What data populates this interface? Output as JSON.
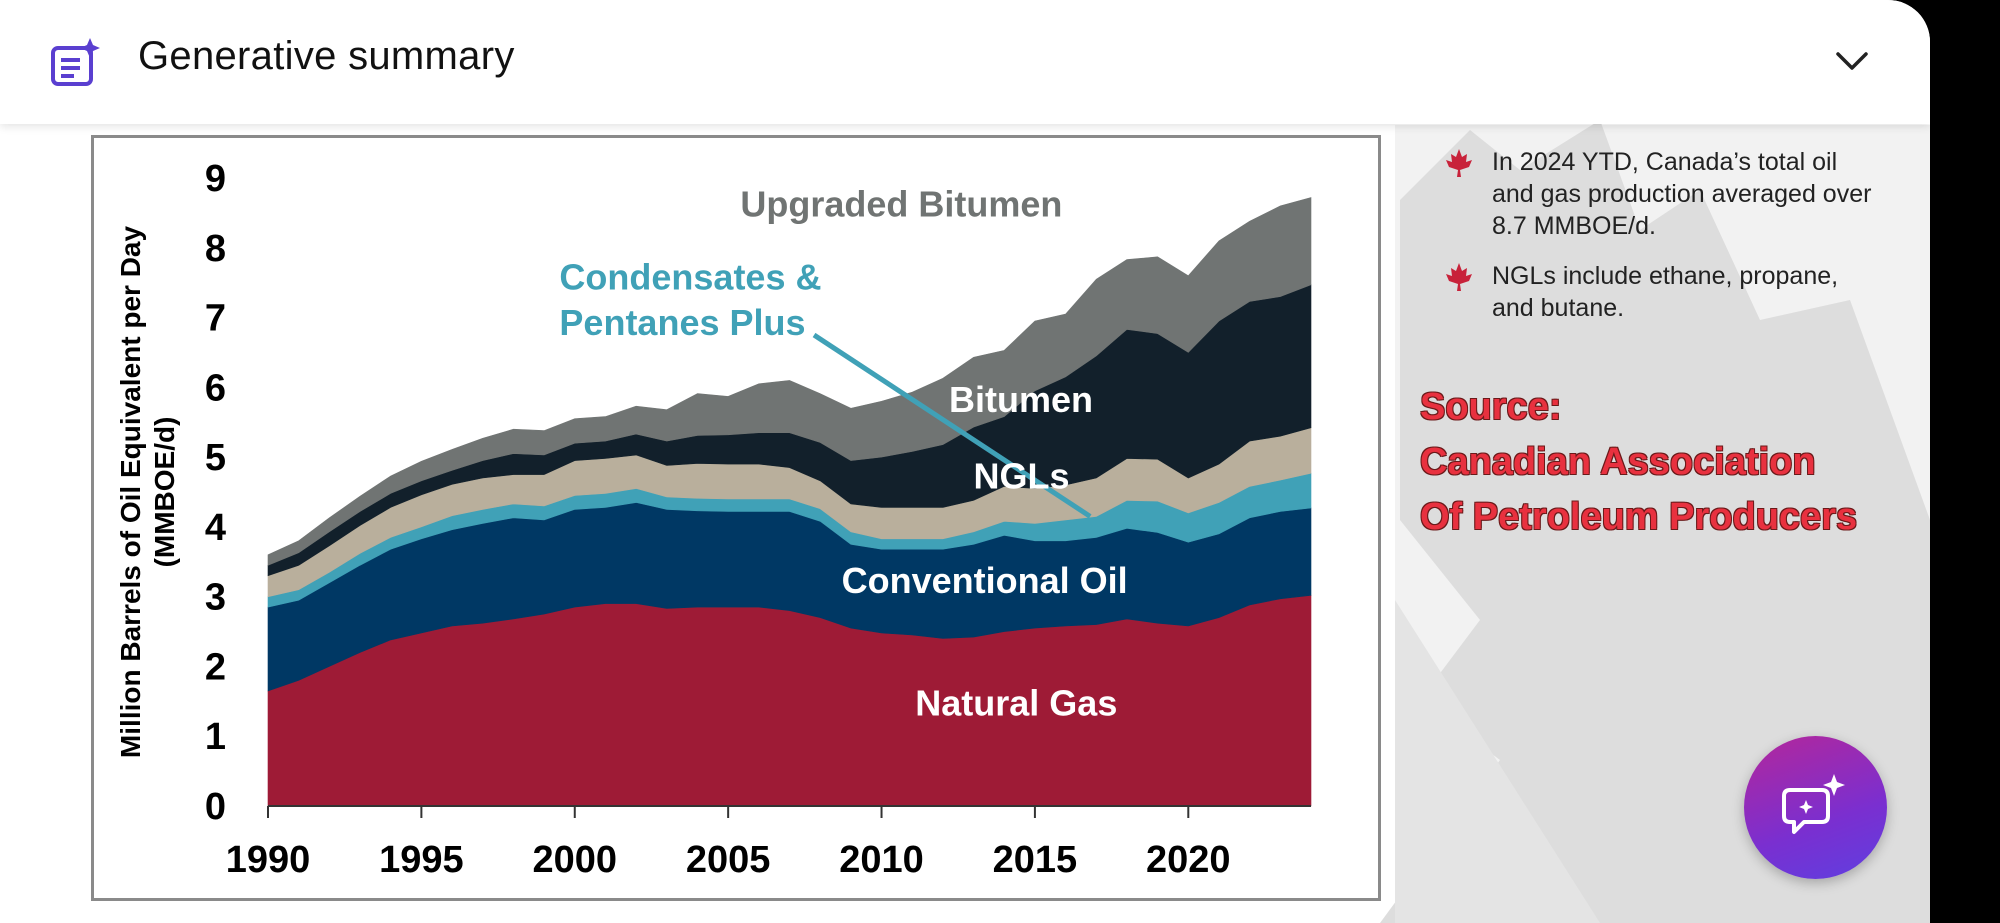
{
  "header": {
    "title": "Generative summary",
    "icon": "sparkle-document-icon",
    "toggle_icon": "chevron-down-icon"
  },
  "bullets": [
    "In 2024 YTD, Canada’s total oil and gas production averaged over 8.7 MMBOE/d.",
    "NGLs include ethane, propane, and butane."
  ],
  "source_lines": [
    "Source:",
    "Canadian Association",
    "Of Petroleum Producers"
  ],
  "fab": {
    "icon": "ai-chat-sparkle-icon"
  },
  "colors": {
    "accent": "#6b2fd6",
    "source_red": "#e8313f"
  },
  "chart_data": {
    "type": "area",
    "stacked": true,
    "title": "",
    "xlabel": "",
    "ylabel": "Million Barrels of Oil Equivalent per Day (MMBOE/d)",
    "ylabel_lines": [
      "Million Barrels of Oil Equivalent per Day",
      "(MMBOE/d)"
    ],
    "xlim": [
      1990,
      2024
    ],
    "ylim": [
      0,
      9
    ],
    "xticks": [
      1990,
      1995,
      2000,
      2005,
      2010,
      2015,
      2020
    ],
    "yticks": [
      0,
      1,
      2,
      3,
      4,
      5,
      6,
      7,
      8,
      9
    ],
    "grid": false,
    "x": [
      1990,
      1991,
      1992,
      1993,
      1994,
      1995,
      1996,
      1997,
      1998,
      1999,
      2000,
      2001,
      2002,
      2003,
      2004,
      2005,
      2006,
      2007,
      2008,
      2009,
      2010,
      2011,
      2012,
      2013,
      2014,
      2015,
      2016,
      2017,
      2018,
      2019,
      2020,
      2021,
      2022,
      2023,
      2024
    ],
    "series": [
      {
        "name": "Natural Gas",
        "color": "#9e1b36",
        "values": [
          1.65,
          1.8,
          2.0,
          2.2,
          2.38,
          2.48,
          2.58,
          2.62,
          2.68,
          2.75,
          2.85,
          2.9,
          2.9,
          2.83,
          2.85,
          2.85,
          2.85,
          2.8,
          2.7,
          2.55,
          2.48,
          2.45,
          2.4,
          2.42,
          2.5,
          2.55,
          2.58,
          2.6,
          2.68,
          2.62,
          2.58,
          2.7,
          2.88,
          2.97,
          3.02
        ]
      },
      {
        "name": "Conventional Oil",
        "color": "#003864",
        "values": [
          1.2,
          1.15,
          1.2,
          1.25,
          1.3,
          1.35,
          1.38,
          1.43,
          1.45,
          1.35,
          1.4,
          1.38,
          1.45,
          1.42,
          1.38,
          1.37,
          1.37,
          1.42,
          1.38,
          1.2,
          1.2,
          1.23,
          1.28,
          1.33,
          1.38,
          1.25,
          1.22,
          1.25,
          1.3,
          1.3,
          1.2,
          1.2,
          1.25,
          1.25,
          1.25
        ]
      },
      {
        "name": "Condensates & Pentanes Plus",
        "color": "#40a1b7",
        "values": [
          0.15,
          0.15,
          0.15,
          0.17,
          0.17,
          0.17,
          0.2,
          0.2,
          0.2,
          0.2,
          0.2,
          0.2,
          0.2,
          0.18,
          0.18,
          0.18,
          0.18,
          0.18,
          0.18,
          0.18,
          0.15,
          0.15,
          0.15,
          0.18,
          0.2,
          0.25,
          0.3,
          0.3,
          0.4,
          0.45,
          0.42,
          0.45,
          0.45,
          0.45,
          0.5
        ]
      },
      {
        "name": "NGLs",
        "color": "#b9af9c",
        "values": [
          0.3,
          0.35,
          0.38,
          0.4,
          0.43,
          0.46,
          0.45,
          0.45,
          0.42,
          0.45,
          0.5,
          0.5,
          0.48,
          0.45,
          0.5,
          0.5,
          0.5,
          0.45,
          0.4,
          0.4,
          0.45,
          0.45,
          0.45,
          0.45,
          0.5,
          0.5,
          0.5,
          0.55,
          0.6,
          0.6,
          0.5,
          0.55,
          0.65,
          0.63,
          0.65
        ]
      },
      {
        "name": "Bitumen",
        "color": "#12202b",
        "values": [
          0.15,
          0.18,
          0.2,
          0.2,
          0.2,
          0.2,
          0.2,
          0.25,
          0.3,
          0.28,
          0.25,
          0.25,
          0.3,
          0.35,
          0.4,
          0.42,
          0.45,
          0.5,
          0.55,
          0.62,
          0.72,
          0.8,
          0.9,
          1.05,
          1.0,
          1.4,
          1.55,
          1.75,
          1.85,
          1.8,
          1.8,
          2.05,
          2.0,
          2.0,
          2.05
        ]
      },
      {
        "name": "Upgraded Bitumen",
        "color": "#707473",
        "values": [
          0.15,
          0.17,
          0.2,
          0.22,
          0.25,
          0.28,
          0.3,
          0.32,
          0.35,
          0.35,
          0.35,
          0.35,
          0.4,
          0.45,
          0.6,
          0.55,
          0.7,
          0.75,
          0.7,
          0.75,
          0.8,
          0.85,
          0.95,
          1.0,
          0.95,
          1.0,
          0.9,
          1.1,
          1.0,
          1.1,
          1.1,
          1.15,
          1.15,
          1.3,
          1.25
        ]
      }
    ],
    "labels": [
      {
        "text": "Upgraded Bitumen",
        "x": 2005.4,
        "y": 8.45,
        "color": "#707473",
        "anchor": "start"
      },
      {
        "text": "Condensates &",
        "x": 1999.5,
        "y": 7.4,
        "color": "#40a1b7",
        "anchor": "start"
      },
      {
        "text": "Pentanes Plus",
        "x": 1999.5,
        "y": 6.75,
        "color": "#40a1b7",
        "anchor": "start"
      },
      {
        "text": "Bitumen",
        "x": 2012.2,
        "y": 5.65,
        "color": "#ffffff",
        "anchor": "start"
      },
      {
        "text": "NGLs",
        "x": 2013.0,
        "y": 4.55,
        "color": "#ffffff",
        "anchor": "start"
      },
      {
        "text": "Conventional Oil",
        "x": 2008.7,
        "y": 3.05,
        "color": "#ffffff",
        "anchor": "start"
      },
      {
        "text": "Natural Gas",
        "x": 2011.1,
        "y": 1.3,
        "color": "#ffffff",
        "anchor": "start"
      }
    ],
    "leader_line": {
      "from": [
        2007.8,
        6.75
      ],
      "to": [
        2016.8,
        4.15
      ],
      "color": "#40a1b7"
    }
  }
}
